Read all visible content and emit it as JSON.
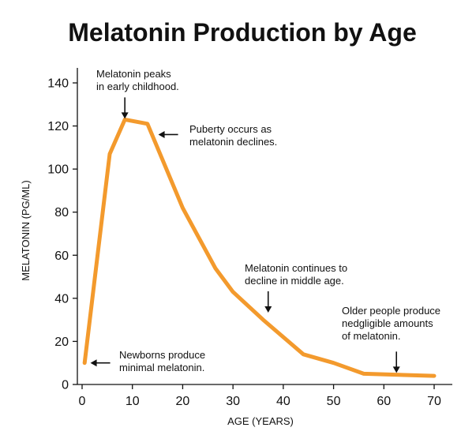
{
  "chart_data": {
    "type": "line",
    "title": "Melatonin Production by Age",
    "xlabel": "AGE (YEARS)",
    "ylabel": "MELATONIN (PG/ML)",
    "xlim": [
      0,
      73
    ],
    "ylim": [
      0,
      140
    ],
    "xticks": [
      0,
      10,
      20,
      30,
      40,
      50,
      60,
      70
    ],
    "yticks": [
      0,
      20,
      40,
      60,
      80,
      100,
      120,
      140
    ],
    "grid": false,
    "color": "#f39a2d",
    "x": [
      0.5,
      5.5,
      8.5,
      13,
      20,
      26.5,
      30,
      36,
      44,
      50,
      56,
      70
    ],
    "y": [
      10,
      107,
      123,
      121,
      82,
      54,
      43,
      30,
      14,
      10,
      5,
      4
    ],
    "annotations": [
      {
        "lines": [
          "Melatonin peaks",
          "in early childhood."
        ],
        "x": 8.5,
        "y": 123,
        "arrow": "down"
      },
      {
        "lines": [
          "Puberty occurs as",
          "melatonin declines."
        ],
        "x": 15,
        "y": 116,
        "arrow": "left"
      },
      {
        "lines": [
          "Melatonin continues to",
          "decline in middle age."
        ],
        "x": 37,
        "y": 33,
        "arrow": "down"
      },
      {
        "lines": [
          "Older people produce",
          "nedgligible amounts",
          "of melatonin."
        ],
        "x": 62.5,
        "y": 5,
        "arrow": "down"
      },
      {
        "lines": [
          "Newborns produce",
          "minimal melatonin."
        ],
        "x": 1.5,
        "y": 10,
        "arrow": "left"
      }
    ]
  }
}
